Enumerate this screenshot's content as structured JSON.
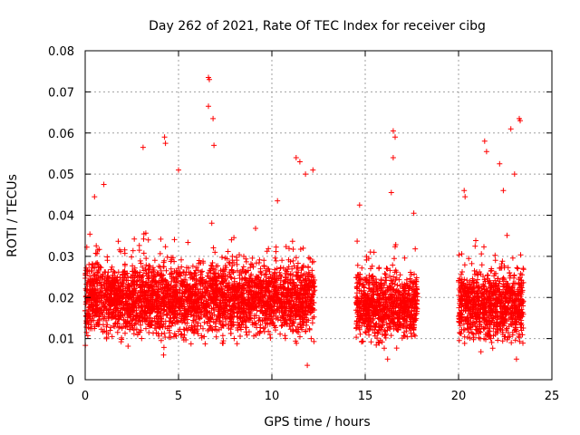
{
  "chart_data": {
    "type": "scatter",
    "title": "Day 262 of 2021, Rate Of TEC Index for receiver cibg",
    "xlabel": "GPS time / hours",
    "ylabel": "ROTI / TECUs",
    "xlim": [
      0,
      25
    ],
    "ylim": [
      0,
      0.08
    ],
    "xticks": [
      0,
      5,
      10,
      15,
      20,
      25
    ],
    "yticks": [
      0,
      0.01,
      0.02,
      0.03,
      0.04,
      0.05,
      0.06,
      0.07,
      0.08
    ],
    "grid": true,
    "marker": "+",
    "color": "#ff0000",
    "series": [
      {
        "name": "ROTI",
        "segments": [
          {
            "x_start": 0.0,
            "x_end": 12.3,
            "typical_min": 0.007,
            "typical_max": 0.032
          },
          {
            "x_start": 14.5,
            "x_end": 17.8,
            "typical_min": 0.006,
            "typical_max": 0.03
          },
          {
            "x_start": 20.0,
            "x_end": 23.5,
            "typical_min": 0.006,
            "typical_max": 0.03
          }
        ],
        "outliers": [
          {
            "x": 6.6,
            "y": 0.0735
          },
          {
            "x": 6.65,
            "y": 0.073
          },
          {
            "x": 6.6,
            "y": 0.0665
          },
          {
            "x": 6.85,
            "y": 0.0635
          },
          {
            "x": 4.3,
            "y": 0.0575
          },
          {
            "x": 4.25,
            "y": 0.059
          },
          {
            "x": 3.1,
            "y": 0.0565
          },
          {
            "x": 6.9,
            "y": 0.057
          },
          {
            "x": 11.3,
            "y": 0.054
          },
          {
            "x": 11.5,
            "y": 0.053
          },
          {
            "x": 16.5,
            "y": 0.0605
          },
          {
            "x": 16.6,
            "y": 0.059
          },
          {
            "x": 16.5,
            "y": 0.054
          },
          {
            "x": 21.4,
            "y": 0.058
          },
          {
            "x": 21.5,
            "y": 0.0555
          },
          {
            "x": 22.2,
            "y": 0.0525
          },
          {
            "x": 22.8,
            "y": 0.061
          },
          {
            "x": 23.3,
            "y": 0.063
          },
          {
            "x": 23.25,
            "y": 0.0635
          },
          {
            "x": 11.8,
            "y": 0.05
          },
          {
            "x": 12.2,
            "y": 0.051
          },
          {
            "x": 5.0,
            "y": 0.051
          },
          {
            "x": 10.3,
            "y": 0.0435
          },
          {
            "x": 20.3,
            "y": 0.046
          },
          {
            "x": 20.35,
            "y": 0.0445
          },
          {
            "x": 0.5,
            "y": 0.0445
          },
          {
            "x": 1.0,
            "y": 0.0475
          },
          {
            "x": 16.4,
            "y": 0.0455
          },
          {
            "x": 14.7,
            "y": 0.0425
          },
          {
            "x": 17.6,
            "y": 0.0405
          },
          {
            "x": 23.0,
            "y": 0.05
          },
          {
            "x": 22.4,
            "y": 0.046
          },
          {
            "x": 11.9,
            "y": 0.0035
          },
          {
            "x": 4.2,
            "y": 0.006
          },
          {
            "x": 16.2,
            "y": 0.005
          },
          {
            "x": 23.1,
            "y": 0.005
          }
        ]
      }
    ]
  }
}
